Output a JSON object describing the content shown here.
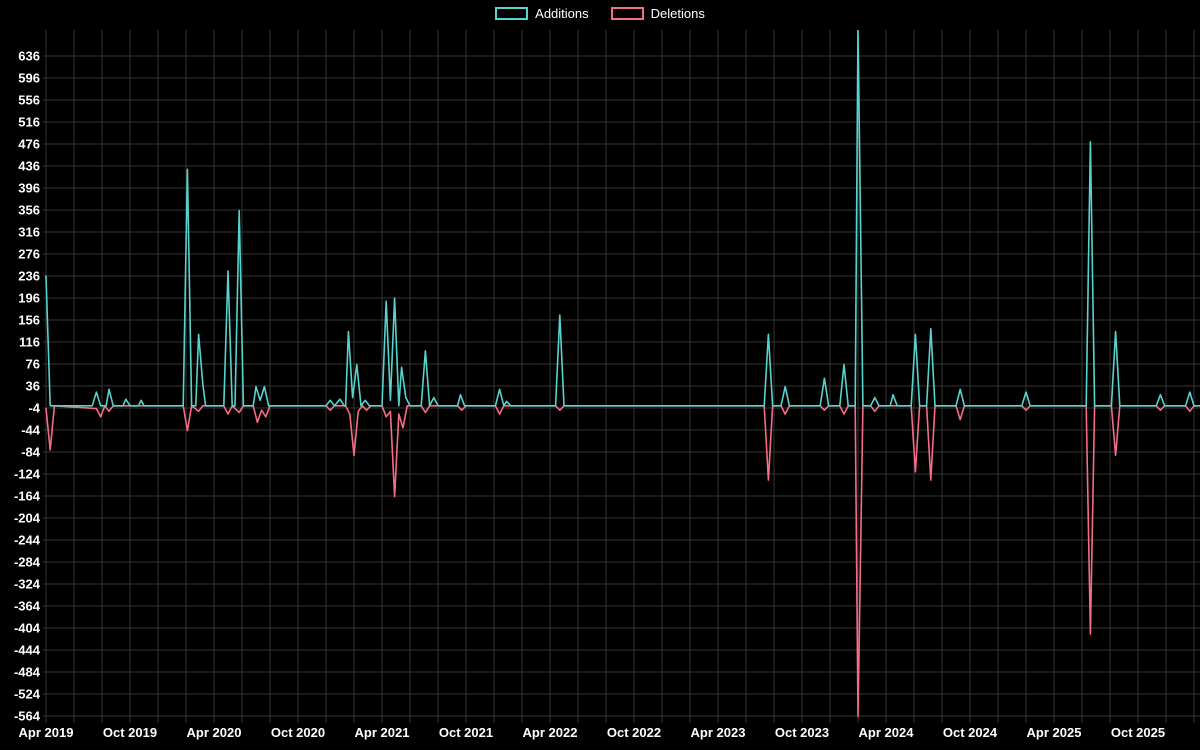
{
  "legend": {
    "items": [
      {
        "label": "Additions",
        "color": "#57d3cd"
      },
      {
        "label": "Deletions",
        "color": "#f56c85"
      }
    ]
  },
  "chart_data": {
    "type": "line",
    "title": "",
    "xlabel": "",
    "ylabel": "",
    "grid": true,
    "legend_position": "top-center",
    "background": "#000000",
    "gridline_color": "#333333",
    "text_color": "#ffffff",
    "y_axis": {
      "min": -564,
      "max": 636,
      "tick_step": 40,
      "ticks": [
        636,
        596,
        556,
        516,
        476,
        436,
        396,
        356,
        316,
        276,
        236,
        196,
        156,
        116,
        76,
        36,
        -4,
        -44,
        -84,
        -124,
        -164,
        -204,
        -244,
        -284,
        -324,
        -364,
        -404,
        -444,
        -484,
        -524,
        -564
      ]
    },
    "x_axis": {
      "unit": "months since Apr 2019",
      "ticks": [
        [
          0,
          "Apr 2019"
        ],
        [
          6,
          "Oct 2019"
        ],
        [
          12,
          "Apr 2020"
        ],
        [
          18,
          "Oct 2020"
        ],
        [
          24,
          "Apr 2021"
        ],
        [
          30,
          "Oct 2021"
        ],
        [
          36,
          "Apr 2022"
        ],
        [
          42,
          "Oct 2022"
        ],
        [
          48,
          "Apr 2023"
        ],
        [
          54,
          "Oct 2023"
        ],
        [
          60,
          "Apr 2024"
        ],
        [
          66,
          "Oct 2024"
        ],
        [
          72,
          "Apr 2025"
        ],
        [
          78,
          "Oct 2025"
        ]
      ],
      "max_month": 82.4
    },
    "series": [
      {
        "name": "Additions",
        "color": "#57d3cd",
        "points": [
          [
            0,
            236
          ],
          [
            0.3,
            0
          ],
          [
            3.3,
            0
          ],
          [
            3.6,
            25
          ],
          [
            3.9,
            0
          ],
          [
            4.3,
            0
          ],
          [
            4.5,
            30
          ],
          [
            4.8,
            0
          ],
          [
            5.5,
            0
          ],
          [
            5.7,
            12
          ],
          [
            6.0,
            0
          ],
          [
            6.6,
            0
          ],
          [
            6.8,
            10
          ],
          [
            7.0,
            0
          ],
          [
            9.8,
            0
          ],
          [
            10.1,
            430
          ],
          [
            10.4,
            0
          ],
          [
            10.7,
            0
          ],
          [
            10.9,
            130
          ],
          [
            11.2,
            40
          ],
          [
            11.4,
            0
          ],
          [
            12.7,
            0
          ],
          [
            13.0,
            245
          ],
          [
            13.3,
            0
          ],
          [
            13.5,
            0
          ],
          [
            13.8,
            355
          ],
          [
            14.1,
            0
          ],
          [
            14.8,
            0
          ],
          [
            15.0,
            35
          ],
          [
            15.3,
            10
          ],
          [
            15.6,
            35
          ],
          [
            15.9,
            0
          ],
          [
            20.0,
            0
          ],
          [
            20.3,
            10
          ],
          [
            20.6,
            0
          ],
          [
            21.0,
            12
          ],
          [
            21.3,
            0
          ],
          [
            21.4,
            0
          ],
          [
            21.6,
            135
          ],
          [
            21.9,
            15
          ],
          [
            22.2,
            75
          ],
          [
            22.5,
            0
          ],
          [
            22.8,
            10
          ],
          [
            23.1,
            0
          ],
          [
            24.0,
            0
          ],
          [
            24.3,
            190
          ],
          [
            24.6,
            10
          ],
          [
            24.9,
            196
          ],
          [
            25.2,
            0
          ],
          [
            25.4,
            70
          ],
          [
            25.7,
            15
          ],
          [
            26.0,
            0
          ],
          [
            26.8,
            0
          ],
          [
            27.1,
            100
          ],
          [
            27.4,
            0
          ],
          [
            27.7,
            15
          ],
          [
            28.0,
            0
          ],
          [
            29.4,
            0
          ],
          [
            29.6,
            20
          ],
          [
            29.9,
            0
          ],
          [
            32.1,
            0
          ],
          [
            32.4,
            30
          ],
          [
            32.7,
            0
          ],
          [
            32.9,
            8
          ],
          [
            33.2,
            0
          ],
          [
            36.4,
            0
          ],
          [
            36.7,
            165
          ],
          [
            37.0,
            0
          ],
          [
            51.3,
            0
          ],
          [
            51.6,
            130
          ],
          [
            51.9,
            0
          ],
          [
            52.5,
            0
          ],
          [
            52.8,
            35
          ],
          [
            53.1,
            0
          ],
          [
            55.3,
            0
          ],
          [
            55.6,
            50
          ],
          [
            55.9,
            0
          ],
          [
            56.7,
            0
          ],
          [
            57.0,
            75
          ],
          [
            57.3,
            0
          ],
          [
            57.8,
            0
          ],
          [
            58.0,
            690
          ],
          [
            58.35,
            0
          ],
          [
            58.9,
            0
          ],
          [
            59.2,
            15
          ],
          [
            59.5,
            0
          ],
          [
            60.3,
            0
          ],
          [
            60.5,
            20
          ],
          [
            60.8,
            0
          ],
          [
            61.8,
            0
          ],
          [
            62.1,
            130
          ],
          [
            62.4,
            0
          ],
          [
            62.9,
            0
          ],
          [
            63.2,
            140
          ],
          [
            63.5,
            0
          ],
          [
            65.0,
            0
          ],
          [
            65.3,
            30
          ],
          [
            65.6,
            0
          ],
          [
            69.7,
            0
          ],
          [
            70.0,
            25
          ],
          [
            70.3,
            0
          ],
          [
            74.3,
            0
          ],
          [
            74.6,
            480
          ],
          [
            74.9,
            0
          ],
          [
            76.1,
            0
          ],
          [
            76.4,
            135
          ],
          [
            76.7,
            0
          ],
          [
            79.3,
            0
          ],
          [
            79.6,
            20
          ],
          [
            79.9,
            0
          ],
          [
            81.4,
            0
          ],
          [
            81.7,
            25
          ],
          [
            82.0,
            0
          ],
          [
            82.4,
            0
          ]
        ]
      },
      {
        "name": "Deletions",
        "color": "#f56c85",
        "points": [
          [
            0,
            -5
          ],
          [
            0.3,
            -80
          ],
          [
            0.6,
            0
          ],
          [
            3.6,
            -5
          ],
          [
            3.9,
            -20
          ],
          [
            4.2,
            0
          ],
          [
            4.5,
            -10
          ],
          [
            4.8,
            0
          ],
          [
            9.8,
            0
          ],
          [
            10.1,
            -45
          ],
          [
            10.4,
            0
          ],
          [
            10.9,
            -10
          ],
          [
            11.2,
            0
          ],
          [
            12.7,
            0
          ],
          [
            13.0,
            -15
          ],
          [
            13.3,
            0
          ],
          [
            13.8,
            -12
          ],
          [
            14.1,
            0
          ],
          [
            14.8,
            0
          ],
          [
            15.1,
            -30
          ],
          [
            15.4,
            -8
          ],
          [
            15.7,
            -20
          ],
          [
            16.0,
            0
          ],
          [
            20.0,
            0
          ],
          [
            20.3,
            -8
          ],
          [
            20.6,
            0
          ],
          [
            21.4,
            0
          ],
          [
            21.7,
            -15
          ],
          [
            22.0,
            -90
          ],
          [
            22.3,
            -10
          ],
          [
            22.6,
            0
          ],
          [
            22.9,
            -8
          ],
          [
            23.2,
            0
          ],
          [
            24.0,
            0
          ],
          [
            24.3,
            -20
          ],
          [
            24.6,
            -10
          ],
          [
            24.9,
            -165
          ],
          [
            25.2,
            -15
          ],
          [
            25.5,
            -40
          ],
          [
            25.8,
            0
          ],
          [
            26.8,
            0
          ],
          [
            27.1,
            -12
          ],
          [
            27.4,
            0
          ],
          [
            29.4,
            0
          ],
          [
            29.7,
            -8
          ],
          [
            30.0,
            0
          ],
          [
            32.1,
            0
          ],
          [
            32.4,
            -15
          ],
          [
            32.7,
            0
          ],
          [
            36.4,
            0
          ],
          [
            36.7,
            -8
          ],
          [
            37.0,
            0
          ],
          [
            51.3,
            0
          ],
          [
            51.6,
            -135
          ],
          [
            51.9,
            0
          ],
          [
            52.5,
            0
          ],
          [
            52.8,
            -15
          ],
          [
            53.1,
            0
          ],
          [
            55.3,
            0
          ],
          [
            55.6,
            -8
          ],
          [
            55.9,
            0
          ],
          [
            56.7,
            0
          ],
          [
            57.0,
            -15
          ],
          [
            57.3,
            0
          ],
          [
            57.8,
            0
          ],
          [
            58.0,
            -565
          ],
          [
            58.35,
            0
          ],
          [
            58.9,
            0
          ],
          [
            59.2,
            -10
          ],
          [
            59.5,
            0
          ],
          [
            61.8,
            0
          ],
          [
            62.1,
            -120
          ],
          [
            62.4,
            0
          ],
          [
            62.9,
            0
          ],
          [
            63.2,
            -135
          ],
          [
            63.5,
            0
          ],
          [
            65.0,
            0
          ],
          [
            65.3,
            -25
          ],
          [
            65.6,
            0
          ],
          [
            69.7,
            0
          ],
          [
            70.0,
            -8
          ],
          [
            70.3,
            0
          ],
          [
            74.3,
            0
          ],
          [
            74.6,
            -415
          ],
          [
            74.9,
            0
          ],
          [
            76.1,
            0
          ],
          [
            76.4,
            -90
          ],
          [
            76.7,
            0
          ],
          [
            79.3,
            0
          ],
          [
            79.6,
            -8
          ],
          [
            79.9,
            0
          ],
          [
            81.4,
            0
          ],
          [
            81.7,
            -10
          ],
          [
            82.0,
            0
          ],
          [
            82.4,
            0
          ]
        ]
      }
    ]
  }
}
